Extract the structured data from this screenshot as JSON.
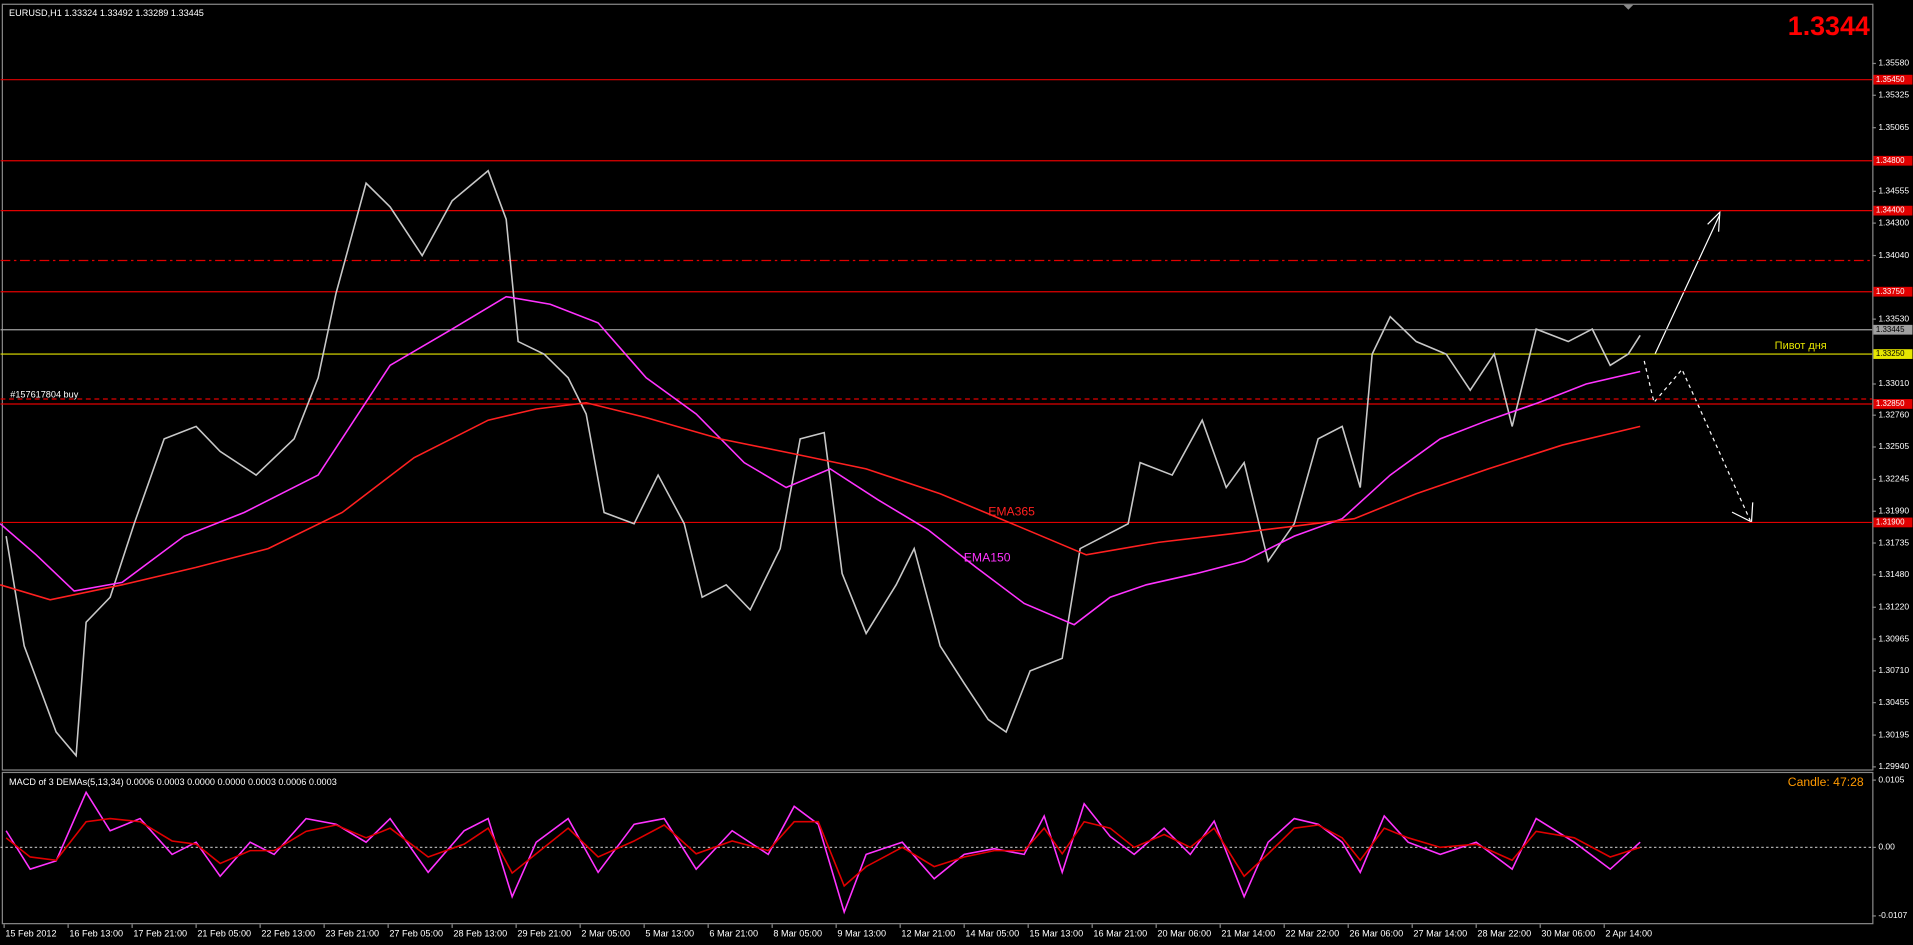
{
  "chart_data": [
    {
      "type": "line",
      "title": "EURUSD,H1  1.33324 1.33492 1.33289 1.33445",
      "last_price": "1.3344",
      "order_label": "#157617804 buy",
      "pivot_label": "Пивот дня",
      "xlim": [
        -1.8,
        934
      ],
      "ylim": [
        1.2991,
        1.3604
      ],
      "yticks": [
        {
          "value": 1.3558,
          "label": "1.35580"
        },
        1.35325,
        1.35065,
        1.34555,
        {
          "value": 1.343,
          "label": "1.34300"
        },
        {
          "value": 1.3404,
          "label": "1.34040"
        },
        {
          "value": 1.3353,
          "label": "1.33530"
        },
        {
          "value": 1.3301,
          "label": "1.33010"
        },
        {
          "value": 1.3276,
          "label": "1.32760"
        },
        1.32505,
        1.32245,
        {
          "value": 1.3199,
          "label": "1.31990"
        },
        1.31735,
        {
          "value": 1.3148,
          "label": "1.31480"
        },
        {
          "value": 1.3122,
          "label": "1.31220"
        },
        1.30965,
        {
          "value": 1.3071,
          "label": "1.30710"
        },
        1.30455,
        1.30195,
        {
          "value": 1.2994,
          "label": "1.29940"
        }
      ],
      "xticks": [
        {
          "value": 0,
          "label": "15 Feb 2012"
        },
        {
          "value": 32,
          "label": "16 Feb 13:00"
        },
        {
          "value": 64,
          "label": "17 Feb 21:00"
        },
        {
          "value": 96,
          "label": "21 Feb 05:00"
        },
        {
          "value": 128,
          "label": "22 Feb 13:00"
        },
        {
          "value": 160,
          "label": "23 Feb 21:00"
        },
        {
          "value": 192,
          "label": "27 Feb 05:00"
        },
        {
          "value": 224,
          "label": "28 Feb 13:00"
        },
        {
          "value": 256,
          "label": "29 Feb 21:00"
        },
        {
          "value": 288,
          "label": "2 Mar 05:00"
        },
        {
          "value": 320,
          "label": "5 Mar 13:00"
        },
        {
          "value": 352,
          "label": "6 Mar 21:00"
        },
        {
          "value": 384,
          "label": "8 Mar 05:00"
        },
        {
          "value": 416,
          "label": "9 Mar 13:00"
        },
        {
          "value": 448,
          "label": "12 Mar 21:00"
        },
        {
          "value": 480,
          "label": "14 Mar 05:00"
        },
        {
          "value": 512,
          "label": "15 Mar 13:00"
        },
        {
          "value": 544,
          "label": "16 Mar 21:00"
        },
        {
          "value": 576,
          "label": "20 Mar 06:00"
        },
        {
          "value": 608,
          "label": "21 Mar 14:00"
        },
        {
          "value": 640,
          "label": "22 Mar 22:00"
        },
        {
          "value": 672,
          "label": "26 Mar 06:00"
        },
        {
          "value": 704,
          "label": "27 Mar 14:00"
        },
        {
          "value": 736,
          "label": "28 Mar 22:00"
        },
        {
          "value": 768,
          "label": "30 Mar 06:00"
        },
        {
          "value": 800,
          "label": "2 Apr 14:00"
        }
      ],
      "levels": [
        {
          "value": 1.3545,
          "color": "#e00000",
          "style": "solid",
          "label": "1.35450"
        },
        {
          "value": 1.348,
          "color": "#e00000",
          "style": "solid",
          "label": "1.34800"
        },
        {
          "value": 1.344,
          "color": "#e00000",
          "style": "solid",
          "label": "1.34400"
        },
        {
          "value": 1.34,
          "color": "#e00000",
          "style": "dashdot"
        },
        {
          "value": 1.3375,
          "color": "#e00000",
          "style": "solid",
          "label": "1.33750"
        },
        {
          "value": 1.33445,
          "color": "#a0a0a0",
          "style": "solid",
          "label": "1.33445"
        },
        {
          "value": 1.3325,
          "color": "#e6e600",
          "style": "solid",
          "label": "1.33250"
        },
        {
          "value": 1.3289,
          "color": "#e00000",
          "style": "dashed"
        },
        {
          "value": 1.3285,
          "color": "#e00000",
          "style": "solid",
          "label": "1.32850"
        },
        {
          "value": 1.319,
          "color": "#e00000",
          "style": "solid",
          "label": "1.31900"
        }
      ],
      "series": [
        {
          "color": "#c8c8c8",
          "x": [
            1,
            10,
            26,
            36,
            41,
            53,
            65,
            80,
            96,
            108,
            126,
            145,
            157,
            166,
            181,
            193,
            209,
            224,
            242,
            251,
            257,
            270,
            282,
            291,
            300,
            315,
            327,
            340,
            349,
            361,
            373,
            388,
            398,
            410,
            419,
            431,
            446,
            455,
            468,
            480,
            492,
            501,
            513,
            529,
            538,
            550,
            562,
            568,
            584,
            599,
            611,
            620,
            632,
            645,
            657,
            669,
            678,
            684,
            693,
            706,
            721,
            733,
            745,
            754,
            766,
            782,
            794,
            803,
            812,
            818
          ],
          "values": [
            1.3179,
            1.3091,
            1.3022,
            1.3003,
            1.311,
            1.313,
            1.3189,
            1.3257,
            1.3267,
            1.3247,
            1.3228,
            1.3257,
            1.3306,
            1.3374,
            1.3462,
            1.3443,
            1.3404,
            1.3448,
            1.3472,
            1.3433,
            1.3335,
            1.3325,
            1.3306,
            1.3277,
            1.3198,
            1.3189,
            1.3228,
            1.3189,
            1.313,
            1.314,
            1.312,
            1.3169,
            1.3257,
            1.3262,
            1.3149,
            1.3101,
            1.314,
            1.3169,
            1.3091,
            1.3061,
            1.3032,
            1.3022,
            1.3071,
            1.3081,
            1.3169,
            1.3179,
            1.3189,
            1.3238,
            1.3228,
            1.3272,
            1.3218,
            1.3238,
            1.3159,
            1.3189,
            1.3257,
            1.3267,
            1.3218,
            1.3325,
            1.3355,
            1.3335,
            1.3325,
            1.3296,
            1.3325,
            1.3267,
            1.3345,
            1.3335,
            1.3345,
            1.3316,
            1.3325,
            1.334
          ]
        },
        {
          "name": "EMA150",
          "color": "#ff33ff",
          "x": [
            -2,
            16,
            35,
            59,
            90,
            120,
            157,
            193,
            224,
            251,
            273,
            297,
            321,
            346,
            370,
            391,
            413,
            437,
            462,
            486,
            510,
            535,
            553,
            571,
            596,
            620,
            645,
            669,
            693,
            718,
            742,
            767,
            791,
            818
          ],
          "values": [
            1.3189,
            1.3164,
            1.3135,
            1.3142,
            1.3179,
            1.3198,
            1.3228,
            1.3316,
            1.3345,
            1.3371,
            1.3365,
            1.335,
            1.3306,
            1.3277,
            1.3238,
            1.3218,
            1.3233,
            1.3208,
            1.3184,
            1.3154,
            1.3125,
            1.3108,
            1.313,
            1.314,
            1.3149,
            1.3159,
            1.3179,
            1.3193,
            1.3228,
            1.3257,
            1.3272,
            1.3286,
            1.3301,
            1.3311
          ]
        },
        {
          "name": "EMA365",
          "color": "#ff2020",
          "x": [
            -2,
            23,
            59,
            96,
            132,
            169,
            205,
            242,
            266,
            291,
            321,
            358,
            395,
            431,
            468,
            504,
            541,
            577,
            614,
            645,
            675,
            706,
            742,
            779,
            818
          ],
          "values": [
            1.314,
            1.3128,
            1.314,
            1.3154,
            1.3169,
            1.3198,
            1.3242,
            1.3272,
            1.3281,
            1.3286,
            1.3274,
            1.3257,
            1.3245,
            1.3233,
            1.3213,
            1.3189,
            1.3164,
            1.3174,
            1.3181,
            1.3187,
            1.3193,
            1.3213,
            1.3233,
            1.3252,
            1.3267
          ]
        }
      ]
    },
    {
      "type": "line",
      "title": "MACD of 3 DEMAs(5,13,34) 0.0006 0.0003 0.0000 0.0000 0.0003 0.0006 0.0003",
      "candle_label": "Candle:  47:28",
      "xlim": [
        -1.8,
        934
      ],
      "ylim": [
        -0.012,
        0.0116
      ],
      "yticks": [
        0.0105,
        {
          "value": 0,
          "label": "0.00"
        },
        -0.0107
      ],
      "series": [
        {
          "color": "#ff33ff",
          "x": [
            1,
            13,
            26,
            41,
            53,
            68,
            84,
            96,
            108,
            123,
            135,
            151,
            166,
            181,
            193,
            212,
            230,
            242,
            254,
            266,
            282,
            297,
            315,
            330,
            346,
            364,
            382,
            395,
            407,
            420,
            431,
            449,
            465,
            480,
            495,
            510,
            520,
            529,
            540,
            553,
            565,
            580,
            593,
            605,
            620,
            632,
            645,
            657,
            669,
            678,
            690,
            702,
            718,
            736,
            754,
            766,
            785,
            803,
            818
          ],
          "values": [
            0.0026,
            -0.0034,
            -0.0021,
            0.0086,
            0.0026,
            0.0045,
            -0.0011,
            0.0008,
            -0.0045,
            0.0008,
            -0.0011,
            0.0045,
            0.0036,
            0.0008,
            0.0045,
            -0.0039,
            0.0026,
            0.0045,
            -0.0077,
            0.0008,
            0.0045,
            -0.0039,
            0.0036,
            0.0045,
            -0.0034,
            0.0026,
            -0.0011,
            0.0064,
            0.0036,
            -0.0101,
            -0.0011,
            0.0008,
            -0.0049,
            -0.0011,
            -0.0002,
            -0.0011,
            0.0049,
            -0.0039,
            0.0068,
            0.0017,
            -0.0011,
            0.003,
            -0.0011,
            0.0041,
            -0.0077,
            0.0008,
            0.0045,
            0.0036,
            0.0008,
            -0.0039,
            0.0049,
            0.0008,
            -0.0011,
            0.0008,
            -0.0034,
            0.0045,
            0.0008,
            -0.0034,
            0.0008
          ]
        },
        {
          "color": "#e00000",
          "x": [
            1,
            13,
            26,
            41,
            53,
            68,
            84,
            96,
            108,
            123,
            135,
            151,
            166,
            181,
            193,
            212,
            230,
            242,
            254,
            266,
            282,
            297,
            315,
            330,
            346,
            364,
            382,
            395,
            407,
            420,
            431,
            449,
            465,
            480,
            495,
            510,
            520,
            529,
            540,
            553,
            565,
            580,
            593,
            605,
            620,
            632,
            645,
            657,
            669,
            678,
            690,
            702,
            718,
            736,
            754,
            766,
            785,
            803,
            818
          ],
          "values": [
            0.0015,
            -0.0015,
            -0.002,
            0.004,
            0.0045,
            0.004,
            0.001,
            0.0005,
            -0.0025,
            -0.0005,
            -0.0005,
            0.0025,
            0.0035,
            0.0015,
            0.003,
            -0.0015,
            0.0005,
            0.003,
            -0.004,
            -0.001,
            0.003,
            -0.0015,
            0.001,
            0.0035,
            -0.001,
            0.001,
            -0.0005,
            0.004,
            0.004,
            -0.006,
            -0.003,
            0,
            -0.003,
            -0.0015,
            -0.0005,
            -0.0005,
            0.003,
            -0.001,
            0.004,
            0.003,
            0,
            0.002,
            0,
            0.003,
            -0.0045,
            -0.001,
            0.003,
            0.0035,
            0.0015,
            -0.002,
            0.003,
            0.0015,
            0,
            0.0005,
            -0.002,
            0.0025,
            0.0015,
            -0.0015,
            0
          ]
        }
      ]
    }
  ]
}
